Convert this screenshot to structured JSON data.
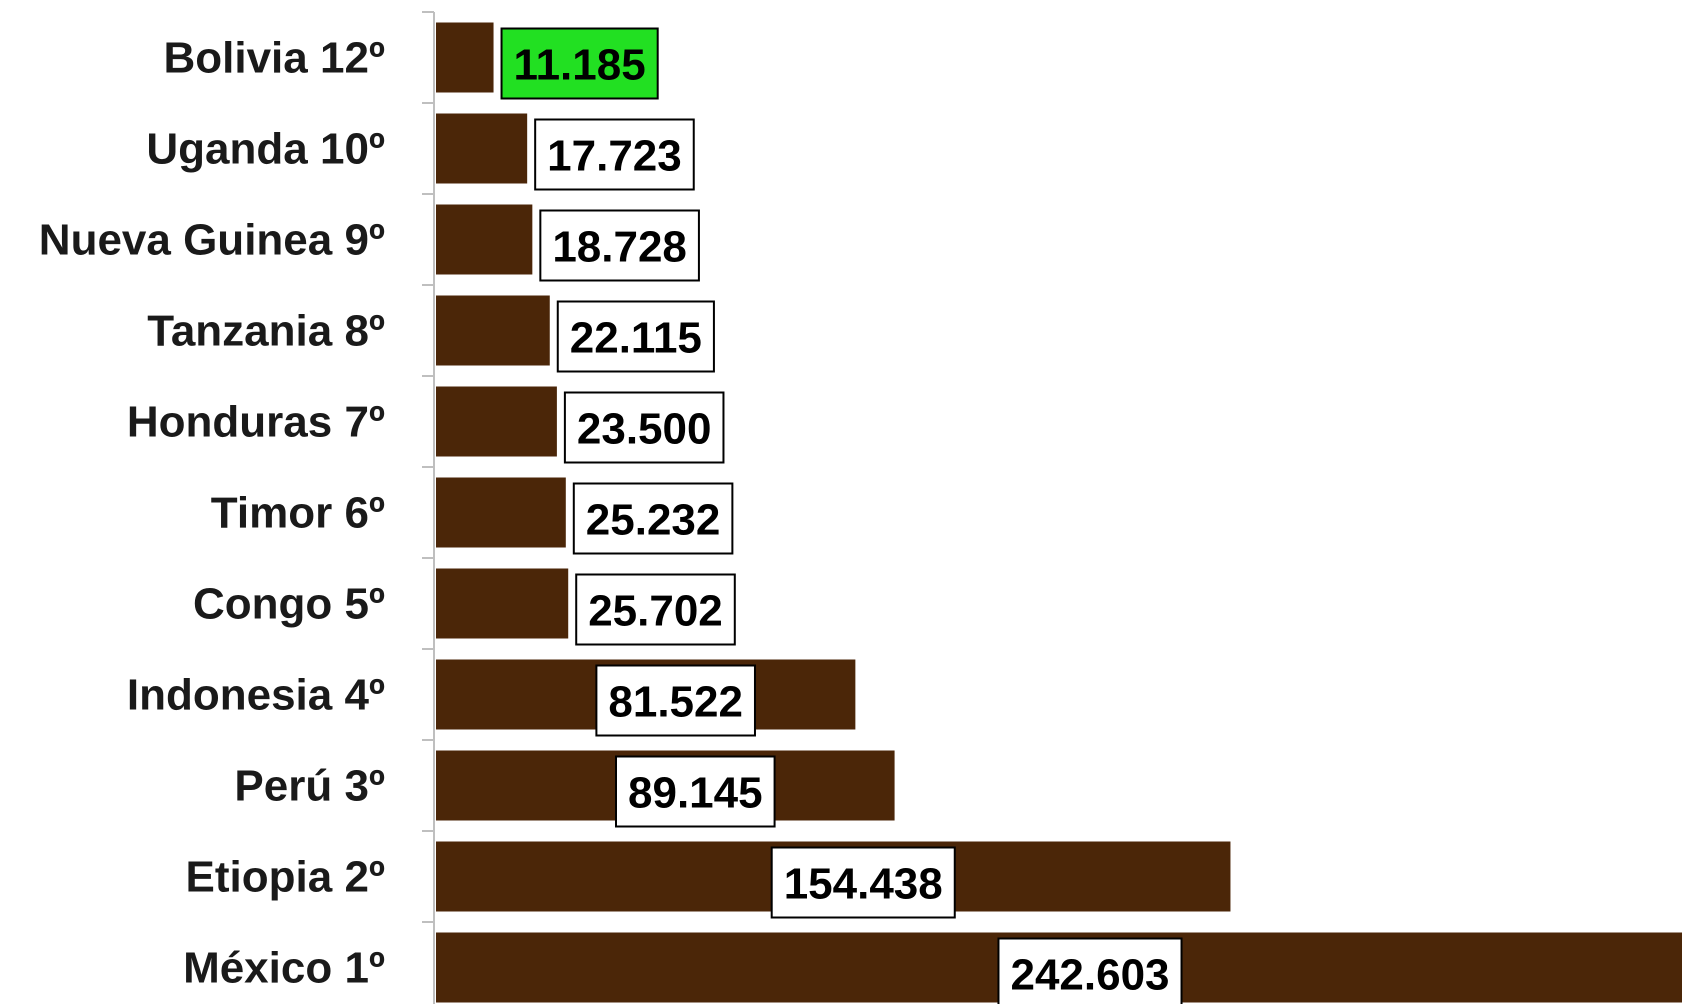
{
  "chart_data": {
    "type": "bar",
    "orientation": "horizontal",
    "categories": [
      "Bolivia 12º",
      "Uganda 10º",
      "Nueva Guinea 9º",
      "Tanzania 8º",
      "Honduras 7º",
      "Timor 6º",
      "Congo 5º",
      "Indonesia 4º",
      "Perú 3º",
      "Etiopia 2º",
      "México 1º"
    ],
    "values": [
      11185,
      17723,
      18728,
      22115,
      23500,
      25232,
      25702,
      81522,
      89145,
      154438,
      242603
    ],
    "data_labels": [
      "11.185",
      "17.723",
      "18.728",
      "22.115",
      "23.500",
      "25.232",
      "25.702",
      "81.522",
      "89.145",
      "154.438",
      "242.603"
    ],
    "title": "",
    "xlabel": "",
    "ylabel": "",
    "grid": false,
    "legend": "none",
    "colors": {
      "bar": "#4b2608",
      "label_box": "#ffffff",
      "highlight_box": "#22e022",
      "axis": "#bfbfbf"
    },
    "highlight_index": 0
  }
}
